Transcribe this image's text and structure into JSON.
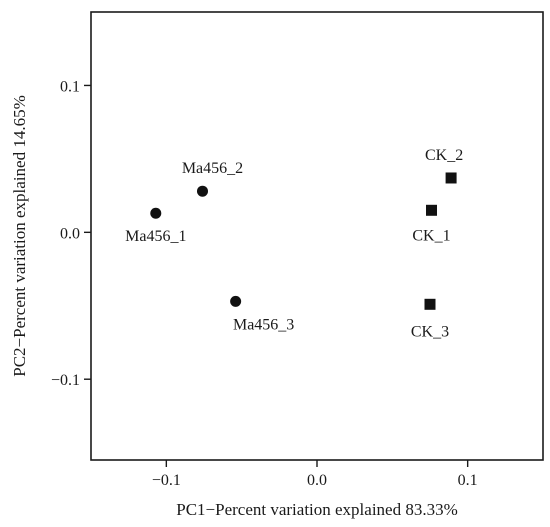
{
  "chart_data": {
    "type": "scatter",
    "xlabel": "PC1−Percent variation explained 83.33%",
    "ylabel": "PC2−Percent variation explained 14.65%",
    "xlim": [
      -0.15,
      0.15
    ],
    "ylim": [
      -0.155,
      0.15
    ],
    "xticks": [
      -0.1,
      0.0,
      0.1
    ],
    "xtick_labels": [
      "−0.1",
      "0.0",
      "0.1"
    ],
    "yticks": [
      -0.1,
      0.0,
      0.1
    ],
    "ytick_labels": [
      "−0.1",
      "0.0",
      "0.1"
    ],
    "grid": false,
    "series": [
      {
        "marker": "circle",
        "points": [
          {
            "label": "Ma456_1",
            "x": -0.107,
            "y": 0.013
          },
          {
            "label": "Ma456_2",
            "x": -0.076,
            "y": 0.028
          },
          {
            "label": "Ma456_3",
            "x": -0.054,
            "y": -0.047
          }
        ]
      },
      {
        "marker": "square",
        "points": [
          {
            "label": "CK_1",
            "x": 0.076,
            "y": 0.015
          },
          {
            "label": "CK_2",
            "x": 0.089,
            "y": 0.037
          },
          {
            "label": "CK_3",
            "x": 0.075,
            "y": -0.049
          }
        ]
      }
    ]
  }
}
